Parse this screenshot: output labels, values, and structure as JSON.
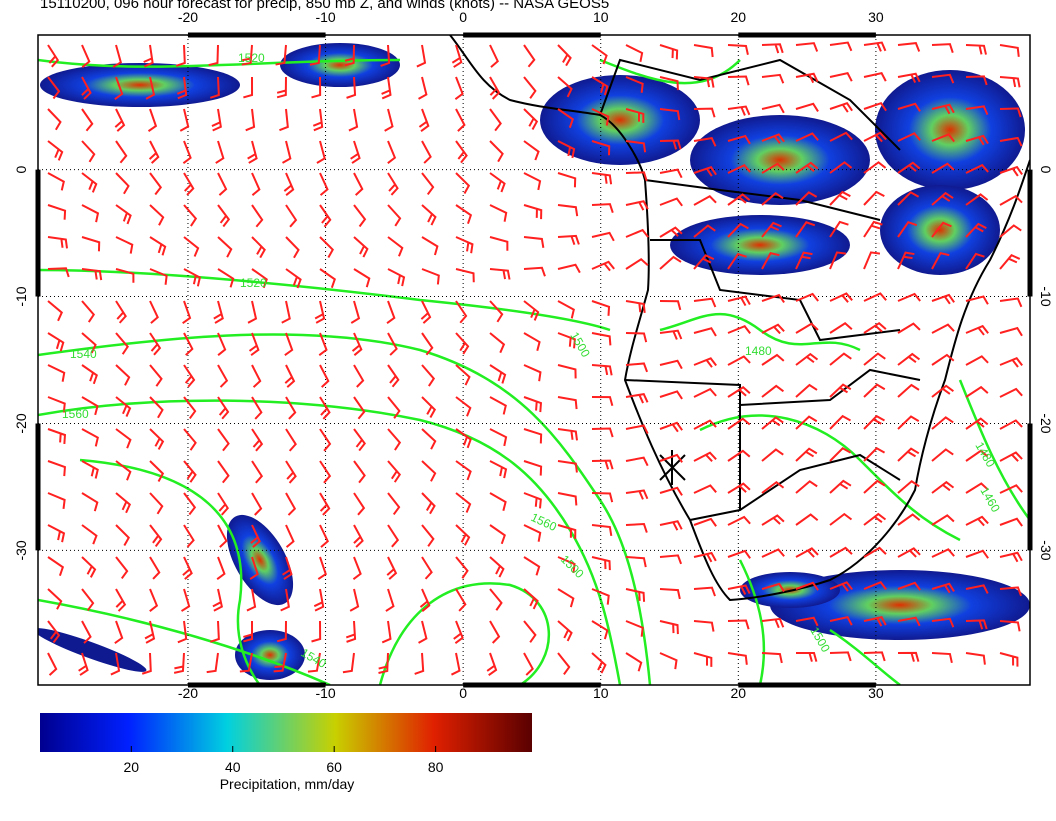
{
  "title": "15110200, 096 hour forecast for precip, 850 mb Z, and winds (knots) -- NASA GEOS5",
  "map": {
    "lon_range": [
      -30.9,
      41.2
    ],
    "lat_range": [
      10.6,
      -40.6
    ],
    "lon_ticks": [
      -20,
      -10,
      0,
      10,
      20,
      30
    ],
    "lat_ticks": [
      0,
      -10,
      -20,
      -30
    ],
    "contour_labels": [
      "1520",
      "1520",
      "1540",
      "1560",
      "1500",
      "1560",
      "1500",
      "1480",
      "1480",
      "1460",
      "1500",
      "1540"
    ]
  },
  "colorbar": {
    "range": [
      2,
      99
    ],
    "ticks": [
      20,
      40,
      60,
      80
    ],
    "label": "Precipitation, mm/day"
  }
}
